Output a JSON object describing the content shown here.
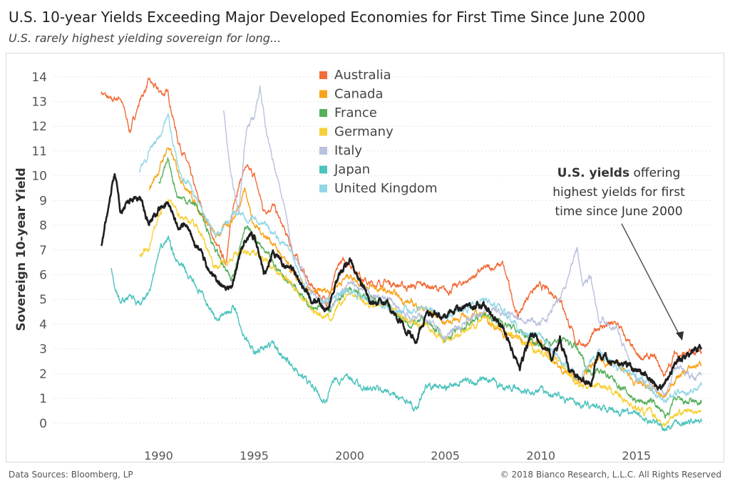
{
  "chart_data": {
    "type": "line",
    "title": "U.S. 10-year Yields Exceeding Major Developed Economies for First Time Since June 2000",
    "subtitle": "U.S. rarely highest yielding sovereign for long...",
    "ylabel": "Sovereign 10-year Yield",
    "xlabel": "",
    "xlim": [
      1984.5,
      2019
    ],
    "ylim": [
      -0.9,
      14.8
    ],
    "x_ticks": [
      "1990",
      "1995",
      "2000",
      "2005",
      "2010",
      "2015"
    ],
    "y_ticks": [
      "0",
      "1",
      "2",
      "3",
      "4",
      "5",
      "6",
      "7",
      "8",
      "9",
      "10",
      "11",
      "12",
      "13",
      "14"
    ],
    "grid": "horizontal dotted",
    "legend_position": "top-center",
    "series": [
      {
        "name": "Australia",
        "color": "#f26b38",
        "x": [
          1987,
          1987.5,
          1988,
          1988.5,
          1989,
          1989.5,
          1990,
          1990.5,
          1991,
          1991.5,
          1992,
          1993,
          1993.5,
          1994,
          1994.5,
          1995,
          1995.5,
          1996,
          1997,
          1998,
          1998.8,
          1999.5,
          2000,
          2001,
          2002,
          2003,
          2004,
          2005,
          2006,
          2007,
          2008,
          2008.8,
          2009.5,
          2010,
          2011,
          2011.8,
          2012.5,
          2013,
          2014,
          2015,
          2016,
          2016.5,
          2017,
          2018,
          2018.4
        ],
        "y": [
          13.4,
          13.0,
          13.2,
          11.8,
          13.0,
          13.8,
          13.4,
          13.3,
          11.5,
          10.5,
          9.2,
          7.2,
          6.5,
          9.2,
          10.3,
          10.0,
          8.6,
          8.8,
          7.0,
          5.5,
          4.9,
          6.5,
          6.5,
          5.6,
          5.7,
          5.5,
          5.6,
          5.3,
          5.7,
          6.2,
          6.4,
          4.3,
          5.4,
          5.5,
          5.1,
          3.3,
          3.2,
          3.9,
          4.0,
          2.7,
          2.6,
          1.9,
          2.8,
          2.8,
          2.8
        ]
      },
      {
        "name": "Canada",
        "color": "#f9a31c",
        "x": [
          1989.5,
          1990,
          1990.5,
          1991,
          1992,
          1993,
          1994,
          1994.5,
          1995,
          1996,
          1997,
          1998,
          1999,
          2000,
          2001,
          2002,
          2003,
          2004,
          2005,
          2006,
          2007,
          2008,
          2009,
          2010,
          2011,
          2012,
          2013,
          2014,
          2015,
          2016,
          2016.5,
          2017,
          2018,
          2018.4
        ],
        "y": [
          9.5,
          10.2,
          11.2,
          10.2,
          8.8,
          7.5,
          8.4,
          9.5,
          8.0,
          7.3,
          6.0,
          5.2,
          5.4,
          6.0,
          5.5,
          5.3,
          4.9,
          4.6,
          4.1,
          4.3,
          4.4,
          3.6,
          3.4,
          3.2,
          2.2,
          1.8,
          2.5,
          2.4,
          1.6,
          1.3,
          1.0,
          1.8,
          2.3,
          2.4
        ]
      },
      {
        "name": "France",
        "color": "#56b05a",
        "x": [
          1990,
          1990.5,
          1991,
          1992,
          1993,
          1993.8,
          1994.5,
          1995,
          1996,
          1997,
          1998,
          1999,
          2000,
          2001,
          2002,
          2003,
          2004,
          2005,
          2006,
          2007,
          2008,
          2009,
          2010,
          2011,
          2011.8,
          2012.5,
          2013,
          2014,
          2015,
          2016,
          2016.5,
          2017,
          2018,
          2018.4
        ],
        "y": [
          9.8,
          10.5,
          9.2,
          8.8,
          7.0,
          5.7,
          8.0,
          7.5,
          6.4,
          5.6,
          4.8,
          4.6,
          5.4,
          5.0,
          4.8,
          4.0,
          4.1,
          3.4,
          3.9,
          4.4,
          4.1,
          3.6,
          3.2,
          3.4,
          3.1,
          2.1,
          2.2,
          1.6,
          0.9,
          0.8,
          0.2,
          0.9,
          0.8,
          0.8
        ]
      },
      {
        "name": "Germany",
        "color": "#f7d037",
        "x": [
          1989,
          1989.5,
          1990,
          1990.5,
          1991,
          1992,
          1993,
          1994,
          1995,
          1996,
          1997,
          1998,
          1999,
          2000,
          2001,
          2002,
          2003,
          2004,
          2005,
          2006,
          2007,
          2008,
          2009,
          2010,
          2011,
          2012,
          2013,
          2014,
          2015,
          2016,
          2016.5,
          2017,
          2018,
          2018.4
        ],
        "y": [
          6.8,
          7.0,
          8.4,
          9.0,
          8.5,
          8.0,
          6.3,
          6.8,
          7.0,
          6.2,
          5.6,
          4.6,
          4.2,
          5.3,
          4.8,
          4.8,
          4.1,
          4.0,
          3.3,
          3.8,
          4.2,
          3.8,
          3.3,
          2.8,
          2.5,
          1.5,
          1.6,
          1.2,
          0.6,
          0.3,
          -0.1,
          0.4,
          0.5,
          0.5
        ]
      },
      {
        "name": "Italy",
        "color": "#b9c2dc",
        "x": [
          1993.4,
          1993.8,
          1994.2,
          1994.6,
          1995,
          1995.3,
          1995.6,
          1996,
          1996.5,
          1997,
          1998,
          1999,
          2000,
          2001,
          2002,
          2003,
          2004,
          2005,
          2006,
          2007,
          2008,
          2009,
          2010,
          2011,
          2011.9,
          2012.2,
          2012.6,
          2013,
          2014,
          2015,
          2016,
          2016.5,
          2017,
          2018,
          2018.4
        ],
        "y": [
          12.6,
          10.0,
          8.5,
          12.0,
          12.3,
          13.6,
          12.0,
          10.5,
          9.0,
          7.0,
          5.3,
          4.7,
          5.6,
          5.2,
          5.0,
          4.3,
          4.3,
          3.5,
          4.0,
          4.6,
          4.5,
          4.3,
          4.0,
          5.0,
          7.1,
          5.5,
          6.0,
          4.3,
          3.8,
          1.8,
          1.4,
          1.2,
          2.2,
          1.9,
          2.0
        ]
      },
      {
        "name": "Japan",
        "color": "#4cc3bd",
        "x": [
          1987.5,
          1988,
          1988.5,
          1989,
          1989.5,
          1990,
          1990.5,
          1991,
          1992,
          1993,
          1994,
          1994.5,
          1995,
          1996,
          1997,
          1998,
          1998.8,
          1999,
          2000,
          2001,
          2002,
          2003,
          2003.5,
          2004,
          2005,
          2006,
          2007,
          2008,
          2009,
          2010,
          2011,
          2012,
          2013,
          2014,
          2015,
          2016,
          2016.5,
          2017,
          2018,
          2018.4
        ],
        "y": [
          6.2,
          4.8,
          5.2,
          4.7,
          5.3,
          6.8,
          7.5,
          6.5,
          5.5,
          4.2,
          4.7,
          3.5,
          2.8,
          3.2,
          2.3,
          1.5,
          0.8,
          1.7,
          1.8,
          1.4,
          1.3,
          0.8,
          0.6,
          1.5,
          1.4,
          1.7,
          1.7,
          1.5,
          1.3,
          1.3,
          1.1,
          0.8,
          0.7,
          0.5,
          0.3,
          0.0,
          -0.2,
          0.05,
          0.05,
          0.05
        ]
      },
      {
        "name": "United Kingdom",
        "color": "#93d6e6",
        "x": [
          1989,
          1989.5,
          1990,
          1990.5,
          1991,
          1992,
          1993,
          1994,
          1995,
          1996,
          1997,
          1998,
          1999,
          2000,
          2001,
          2002,
          2003,
          2004,
          2005,
          2006,
          2007,
          2008,
          2009,
          2010,
          2011,
          2012,
          2013,
          2014,
          2015,
          2016,
          2016.5,
          2017,
          2018,
          2018.4
        ],
        "y": [
          10.2,
          11.0,
          11.5,
          12.5,
          10.4,
          9.0,
          7.5,
          8.5,
          8.3,
          7.8,
          6.8,
          5.0,
          5.0,
          5.4,
          5.0,
          4.7,
          4.5,
          4.8,
          4.3,
          4.6,
          5.0,
          4.5,
          3.6,
          3.6,
          2.5,
          1.8,
          2.9,
          2.2,
          1.9,
          1.2,
          0.8,
          1.2,
          1.4,
          1.5
        ]
      },
      {
        "name": "",
        "color": "#1f1f1f",
        "x": [
          1987,
          1987.3,
          1987.7,
          1988,
          1988.5,
          1989,
          1989.5,
          1990,
          1990.5,
          1991,
          1991.5,
          1992,
          1993,
          1993.8,
          1994.5,
          1995,
          1995.5,
          1996,
          1997,
          1998,
          1998.8,
          1999.5,
          2000,
          2001,
          2002,
          2003,
          2003.5,
          2004,
          2005,
          2006,
          2007,
          2008,
          2008.9,
          2009.5,
          2010,
          2010.6,
          2011,
          2011.5,
          2012,
          2012.6,
          2013,
          2014,
          2015,
          2016,
          2016.5,
          2017,
          2018,
          2018.4
        ],
        "y": [
          7.1,
          8.5,
          10.2,
          8.6,
          9.1,
          9.2,
          8.0,
          8.7,
          8.8,
          8.0,
          8.1,
          7.2,
          5.7,
          5.4,
          7.5,
          7.6,
          6.0,
          6.8,
          6.2,
          5.0,
          4.6,
          6.0,
          6.6,
          5.0,
          4.8,
          3.7,
          3.3,
          4.4,
          4.3,
          4.8,
          4.8,
          3.8,
          2.2,
          3.6,
          3.3,
          2.6,
          3.4,
          2.2,
          1.8,
          1.6,
          2.9,
          2.4,
          2.2,
          1.6,
          1.5,
          2.4,
          2.9,
          3.0
        ]
      }
    ],
    "annotation": {
      "line1_bold": "U.S. yields",
      "line1_rest": " offering",
      "line2": "highest yields for first",
      "line3": "time since June 2000"
    }
  },
  "footer": {
    "source": "Data Sources: Bloomberg, LP",
    "copyright": "© 2018 Bianco Research, L.L.C. All Rights Reserved"
  }
}
